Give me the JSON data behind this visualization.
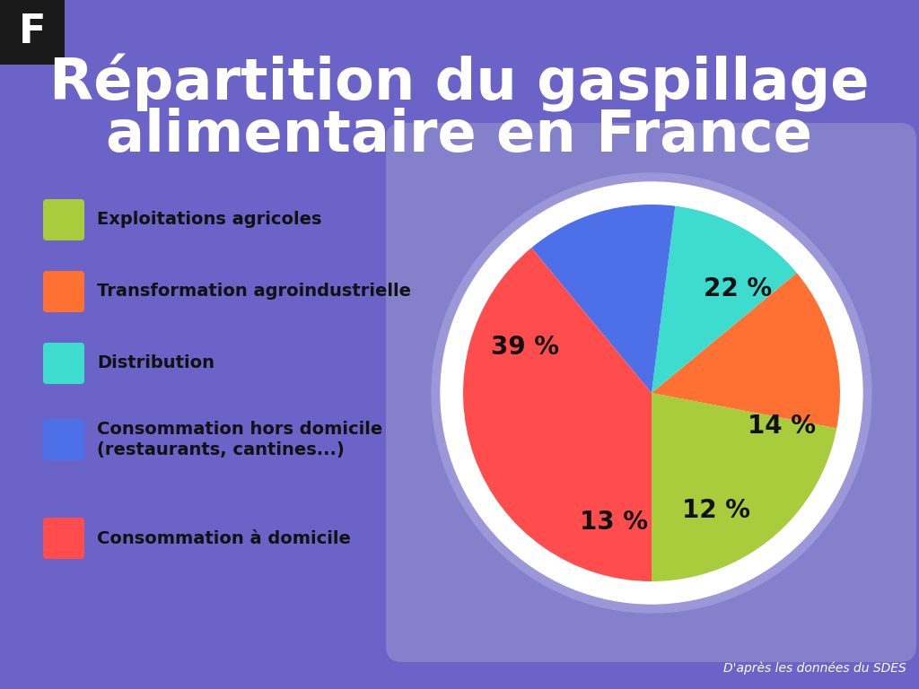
{
  "title_line1": "Répartition du gaspillage",
  "title_line2": "alimentaire en France",
  "background_color": "#6B63C7",
  "pie_card_color": "#8480CC",
  "pie_shadow_color": "#9B97D8",
  "white_ring_color": "#FFFFFF",
  "labels": [
    "Exploitations agricoles",
    "Transformation agroindustrielle",
    "Distribution",
    "Consommation hors domicile\n(restaurants, cantines...)",
    "Consommation à domicile"
  ],
  "values": [
    22,
    14,
    12,
    13,
    39
  ],
  "colors": [
    "#A8CC3C",
    "#FF7033",
    "#3DDCCF",
    "#4D6FE8",
    "#FF4D4D"
  ],
  "pct_labels": [
    "22 %",
    "14 %",
    "12 %",
    "13 %",
    "39 %"
  ],
  "source_text": "D'après les données du SDES",
  "logo_bg": "#1A1A1A",
  "logo_text": "F"
}
